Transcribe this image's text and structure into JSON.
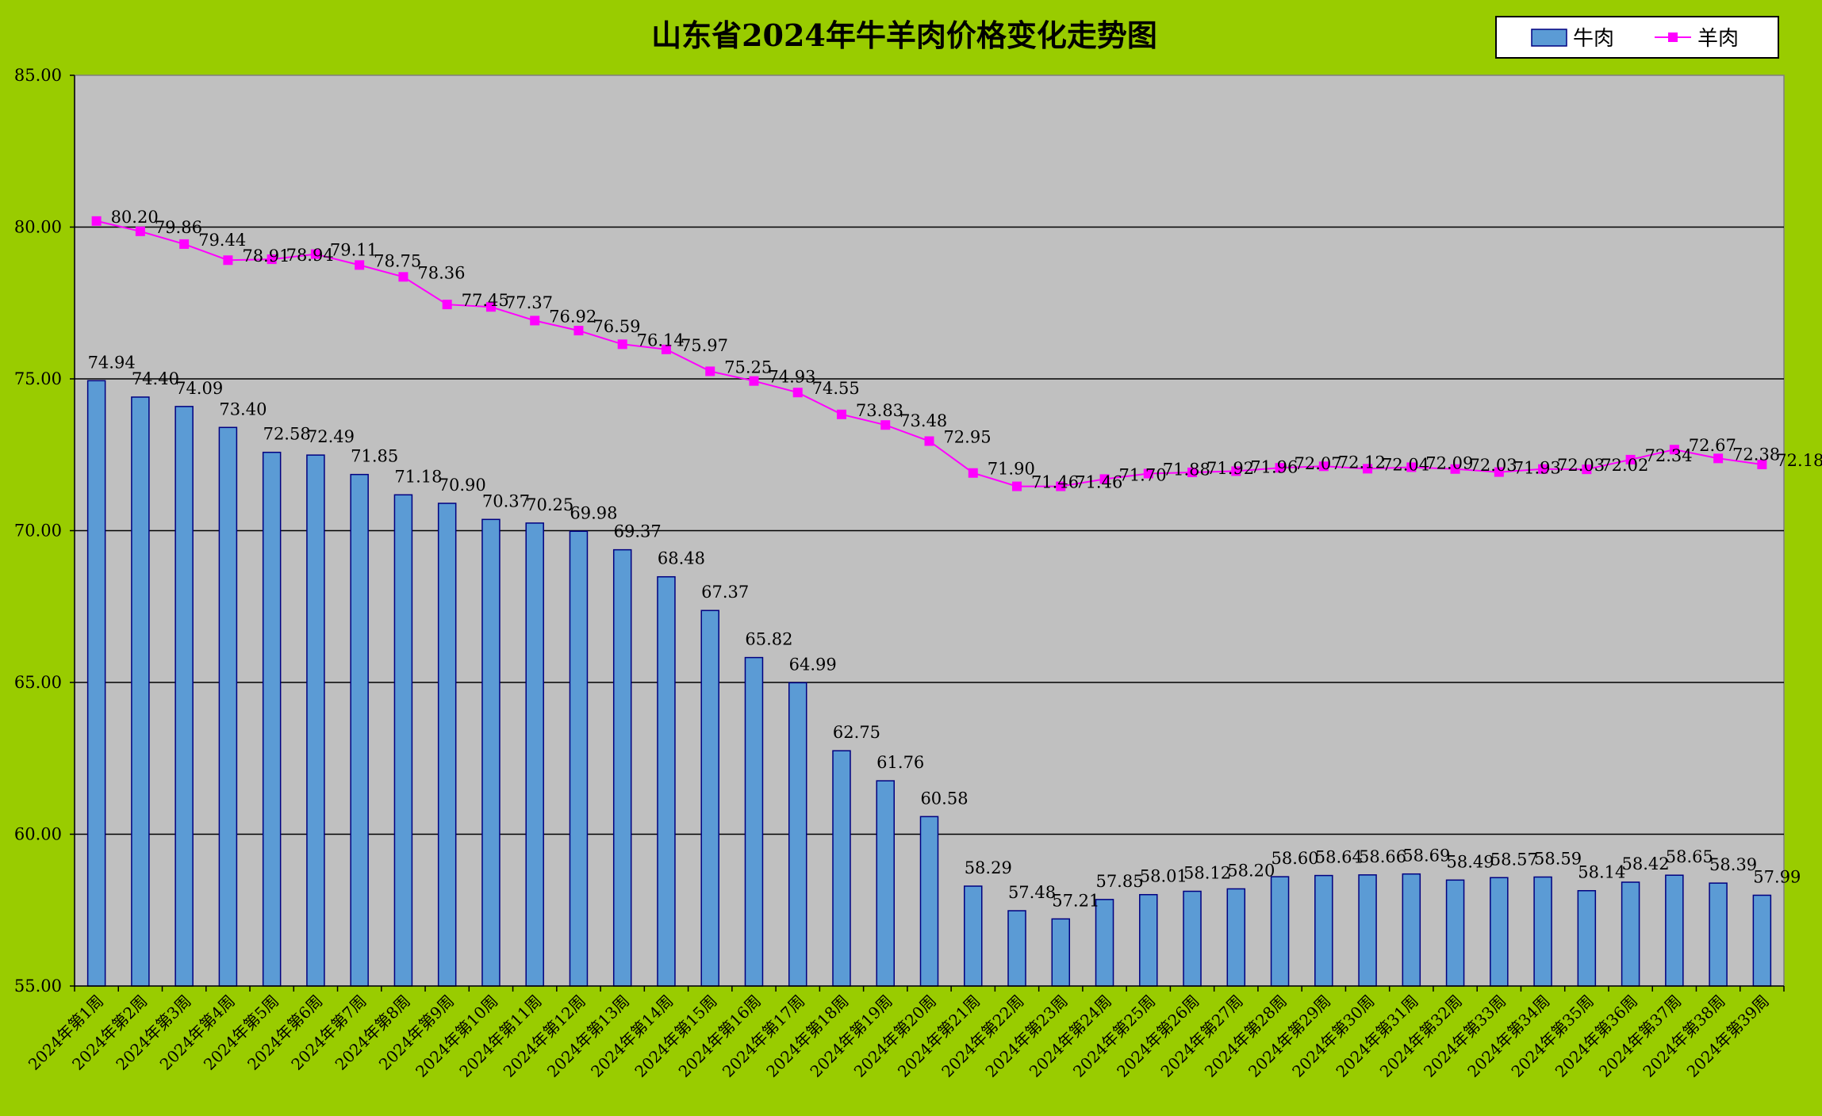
{
  "chart_data": {
    "type": "bar",
    "title": "山东省2024年牛羊肉价格变化走势图",
    "xlabel": "",
    "ylabel": "",
    "ylim": [
      55,
      85
    ],
    "y_ticks": [
      "55.00",
      "60.00",
      "65.00",
      "70.00",
      "75.00",
      "80.00",
      "85.00"
    ],
    "grid": true,
    "legend": "top-right",
    "categories": [
      "2024年第1周",
      "2024年第2周",
      "2024年第3周",
      "2024年第4周",
      "2024年第5周",
      "2024年第6周",
      "2024年第7周",
      "2024年第8周",
      "2024年第9周",
      "2024年第10周",
      "2024年第11周",
      "2024年第12周",
      "2024年第13周",
      "2024年第14周",
      "2024年第15周",
      "2024年第16周",
      "2024年第17周",
      "2024年第18周",
      "2024年第19周",
      "2024年第20周",
      "2024年第21周",
      "2024年第22周",
      "2024年第23周",
      "2024年第24周",
      "2024年第25周",
      "2024年第26周",
      "2024年第27周",
      "2024年第28周",
      "2024年第29周",
      "2024年第30周",
      "2024年第31周",
      "2024年第32周",
      "2024年第33周",
      "2024年第34周",
      "2024年第35周",
      "2024年第36周",
      "2024年第37周",
      "2024年第38周",
      "2024年第39周"
    ],
    "series": [
      {
        "name": "牛肉",
        "kind": "bar",
        "color": "#5b9bd5",
        "values": [
          74.94,
          74.4,
          74.09,
          73.4,
          72.58,
          72.49,
          71.85,
          71.18,
          70.9,
          70.37,
          70.25,
          69.98,
          69.37,
          68.48,
          67.37,
          65.82,
          64.99,
          62.75,
          61.76,
          60.58,
          58.29,
          57.48,
          57.21,
          57.85,
          58.01,
          58.12,
          58.2,
          58.6,
          58.64,
          58.66,
          58.69,
          58.49,
          58.57,
          58.59,
          58.14,
          58.42,
          58.65,
          58.39,
          57.99
        ]
      },
      {
        "name": "羊肉",
        "kind": "line",
        "color": "#ff00ff",
        "values": [
          80.2,
          79.86,
          79.44,
          78.91,
          78.94,
          79.11,
          78.75,
          78.36,
          77.45,
          77.37,
          76.92,
          76.59,
          76.14,
          75.97,
          75.25,
          74.93,
          74.55,
          73.83,
          73.48,
          72.95,
          71.9,
          71.46,
          71.46,
          71.7,
          71.88,
          71.92,
          71.96,
          72.07,
          72.12,
          72.04,
          72.09,
          72.03,
          71.93,
          72.03,
          72.02,
          72.34,
          72.67,
          72.38,
          72.18
        ]
      }
    ]
  }
}
